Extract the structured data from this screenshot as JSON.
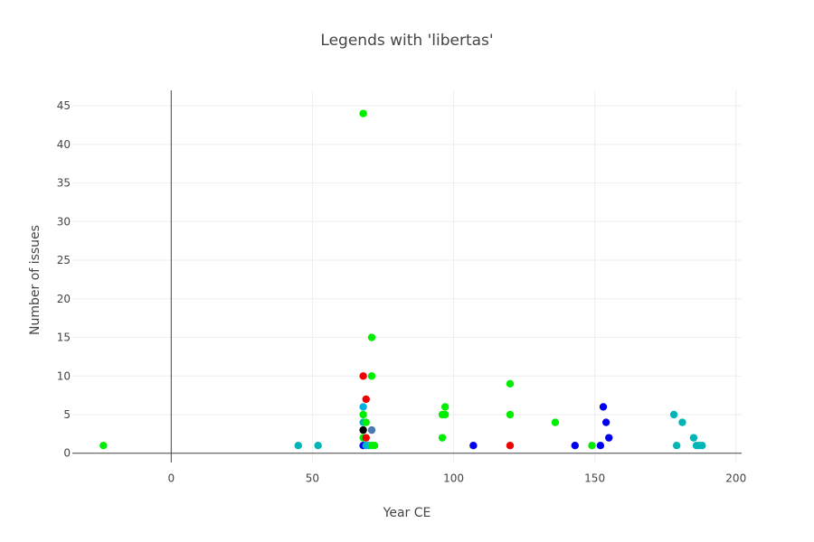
{
  "chart_data": {
    "type": "scatter",
    "title": "Legends with 'libertas'",
    "xlabel": "Year CE",
    "ylabel": "Number of issues",
    "xlim": [
      -35,
      202
    ],
    "ylim": [
      -1.2,
      47
    ],
    "x_ticks": [
      0,
      50,
      100,
      150,
      200
    ],
    "y_ticks": [
      0,
      5,
      10,
      15,
      20,
      25,
      30,
      35,
      40,
      45
    ],
    "grid": true,
    "legend": "none",
    "colors": {
      "green": "#00ee00",
      "teal": "#00b5b5",
      "cyan": "#00b0dd",
      "blue": "#0000ee",
      "red": "#ee0000",
      "black": "#000000",
      "steelblue": "#4a7ab0",
      "axis": "#444444",
      "grid": "#eeeeee"
    },
    "points": [
      {
        "x": -24,
        "y": 1,
        "color": "green"
      },
      {
        "x": 45,
        "y": 1,
        "color": "teal"
      },
      {
        "x": 52,
        "y": 1,
        "color": "teal"
      },
      {
        "x": 68,
        "y": 44,
        "color": "green"
      },
      {
        "x": 68,
        "y": 10,
        "color": "red"
      },
      {
        "x": 68,
        "y": 6,
        "color": "cyan"
      },
      {
        "x": 68,
        "y": 5,
        "color": "green"
      },
      {
        "x": 68,
        "y": 4,
        "color": "teal"
      },
      {
        "x": 68,
        "y": 3,
        "color": "black"
      },
      {
        "x": 68,
        "y": 2,
        "color": "green"
      },
      {
        "x": 68,
        "y": 1,
        "color": "blue"
      },
      {
        "x": 69,
        "y": 7,
        "color": "red"
      },
      {
        "x": 69,
        "y": 4,
        "color": "green"
      },
      {
        "x": 69,
        "y": 2,
        "color": "red"
      },
      {
        "x": 69,
        "y": 1,
        "color": "teal"
      },
      {
        "x": 70,
        "y": 1,
        "color": "cyan"
      },
      {
        "x": 71,
        "y": 15,
        "color": "green"
      },
      {
        "x": 71,
        "y": 10,
        "color": "green"
      },
      {
        "x": 71,
        "y": 3,
        "color": "steelblue"
      },
      {
        "x": 71,
        "y": 1,
        "color": "green"
      },
      {
        "x": 72,
        "y": 1,
        "color": "green"
      },
      {
        "x": 96,
        "y": 5,
        "color": "green"
      },
      {
        "x": 96,
        "y": 2,
        "color": "green"
      },
      {
        "x": 97,
        "y": 6,
        "color": "green"
      },
      {
        "x": 97,
        "y": 5,
        "color": "green"
      },
      {
        "x": 107,
        "y": 1,
        "color": "blue"
      },
      {
        "x": 120,
        "y": 9,
        "color": "green"
      },
      {
        "x": 120,
        "y": 5,
        "color": "green"
      },
      {
        "x": 120,
        "y": 1,
        "color": "red"
      },
      {
        "x": 136,
        "y": 4,
        "color": "green"
      },
      {
        "x": 143,
        "y": 1,
        "color": "blue"
      },
      {
        "x": 149,
        "y": 1,
        "color": "green"
      },
      {
        "x": 152,
        "y": 1,
        "color": "blue"
      },
      {
        "x": 153,
        "y": 6,
        "color": "blue"
      },
      {
        "x": 154,
        "y": 4,
        "color": "blue"
      },
      {
        "x": 155,
        "y": 2,
        "color": "blue"
      },
      {
        "x": 178,
        "y": 5,
        "color": "teal"
      },
      {
        "x": 179,
        "y": 1,
        "color": "teal"
      },
      {
        "x": 181,
        "y": 4,
        "color": "teal"
      },
      {
        "x": 185,
        "y": 2,
        "color": "teal"
      },
      {
        "x": 186,
        "y": 1,
        "color": "teal"
      },
      {
        "x": 187,
        "y": 1,
        "color": "teal"
      },
      {
        "x": 188,
        "y": 1,
        "color": "teal"
      }
    ]
  }
}
